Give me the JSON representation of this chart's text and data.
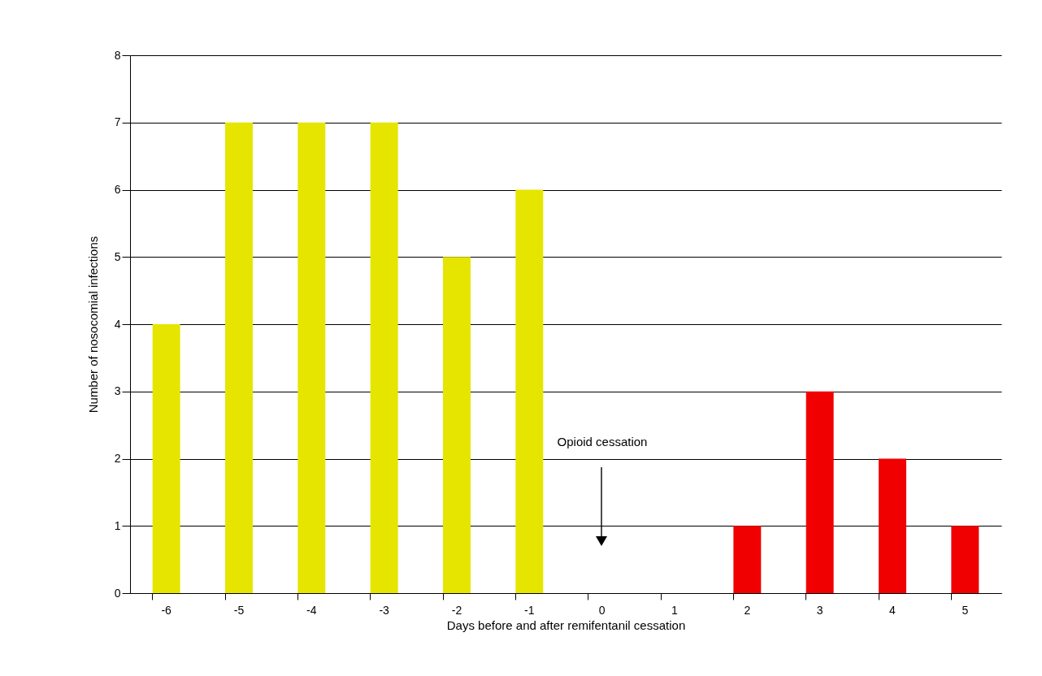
{
  "chart_data": {
    "type": "bar",
    "xlabel": "Days before and after remifentanil cessation",
    "ylabel": "Number of nosocomial infections",
    "categories": [
      "-6",
      "-5",
      "-4",
      "-3",
      "-2",
      "-1",
      "0",
      "1",
      "2",
      "3",
      "4",
      "5"
    ],
    "values": [
      4,
      7,
      7,
      7,
      5,
      6,
      0,
      0,
      1,
      3,
      2,
      1
    ],
    "colors": [
      "#e5e500",
      "#e5e500",
      "#e5e500",
      "#e5e500",
      "#e5e500",
      "#e5e500",
      "#e5e500",
      "#e5e500",
      "#f00000",
      "#f00000",
      "#f00000",
      "#f00000"
    ],
    "ylim": [
      0,
      8
    ],
    "yticks": [
      0,
      1,
      2,
      3,
      4,
      5,
      6,
      7,
      8
    ],
    "grid": "y",
    "annotations": [
      "Opioid cessation"
    ]
  }
}
